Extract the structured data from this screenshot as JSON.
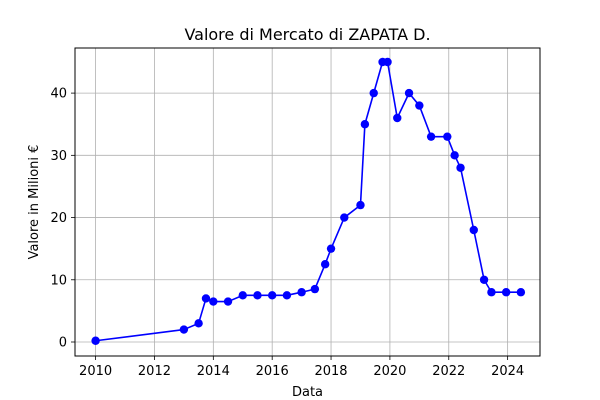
{
  "chart_data": {
    "type": "line",
    "title": "Valore di Mercato di ZAPATA D.",
    "xlabel": "Data",
    "ylabel": "Valore in Milioni €",
    "xlim": [
      2009.3,
      2025.1
    ],
    "ylim": [
      -2.25,
      47.25
    ],
    "x_ticks": [
      2010,
      2012,
      2014,
      2016,
      2018,
      2020,
      2022,
      2024
    ],
    "y_ticks": [
      0,
      10,
      20,
      30,
      40
    ],
    "grid": true,
    "line_color": "#0000ff",
    "marker_color": "#0000ff",
    "series": [
      {
        "x": [
          2010.0,
          2013.0,
          2013.5,
          2013.75,
          2014.0,
          2014.5,
          2015.0,
          2015.5,
          2016.0,
          2016.5,
          2017.0,
          2017.45,
          2017.8,
          2018.0,
          2018.45,
          2019.0,
          2019.15,
          2019.45,
          2019.75,
          2019.92,
          2020.25,
          2020.65,
          2021.0,
          2021.4,
          2021.95,
          2022.2,
          2022.4,
          2022.85,
          2023.2,
          2023.45,
          2023.95,
          2024.45
        ],
        "y": [
          0.2,
          2.0,
          3.0,
          7.0,
          6.5,
          6.5,
          7.5,
          7.5,
          7.5,
          7.5,
          8.0,
          8.5,
          12.5,
          15.0,
          20.0,
          22.0,
          35.0,
          40.0,
          45.0,
          45.0,
          36.0,
          40.0,
          38.0,
          33.0,
          33.0,
          30.0,
          28.0,
          18.0,
          10.0,
          8.0,
          8.0,
          8.0
        ]
      }
    ]
  }
}
